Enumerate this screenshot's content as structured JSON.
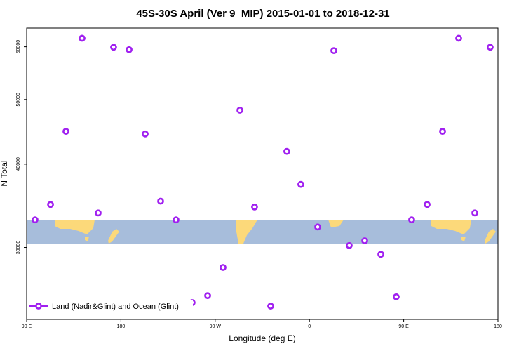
{
  "chart_data": {
    "type": "scatter",
    "title": "45S-30S April (Ver 9_MIP)   2015-01-01 to 2018-12-31",
    "x_label": "Longitude (deg E)",
    "y_label": "N Total",
    "xlim": [
      90,
      540
    ],
    "xticks": [
      {
        "value": 90,
        "label": "90 E"
      },
      {
        "value": 180,
        "label": "180"
      },
      {
        "value": 270,
        "label": "90 W"
      },
      {
        "value": 360,
        "label": "0"
      },
      {
        "value": 450,
        "label": "90 E"
      },
      {
        "value": 540,
        "label": "180"
      }
    ],
    "ylim": [
      23400,
      64000
    ],
    "log_y": true,
    "yticks": [
      30000,
      40000,
      50000,
      60000
    ],
    "legend": "bottom-left",
    "x": [
      98.0,
      112.8,
      127.5,
      142.9,
      158.3,
      173.0,
      187.8,
      203.2,
      217.9,
      232.6,
      248.0,
      262.8,
      277.5,
      293.6,
      307.6,
      323.0,
      338.4,
      351.8,
      367.9,
      383.3,
      398.0,
      412.8,
      428.2,
      442.9,
      457.6,
      472.4,
      487.1,
      502.5,
      517.9,
      532.6
    ],
    "series": [
      {
        "name": "Land (Nadir&Glint) and Ocean (Glint)",
        "color": "#a020f0",
        "values": [
          33000,
          34800,
          44800,
          61800,
          33800,
          59900,
          59400,
          44400,
          35200,
          33000,
          24800,
          25400,
          28000,
          48200,
          34500,
          24500,
          41800,
          37300,
          32200,
          59200,
          30200,
          30700,
          29300,
          25300,
          33000,
          34800,
          44800,
          61800,
          33800,
          59900
        ]
      }
    ]
  }
}
